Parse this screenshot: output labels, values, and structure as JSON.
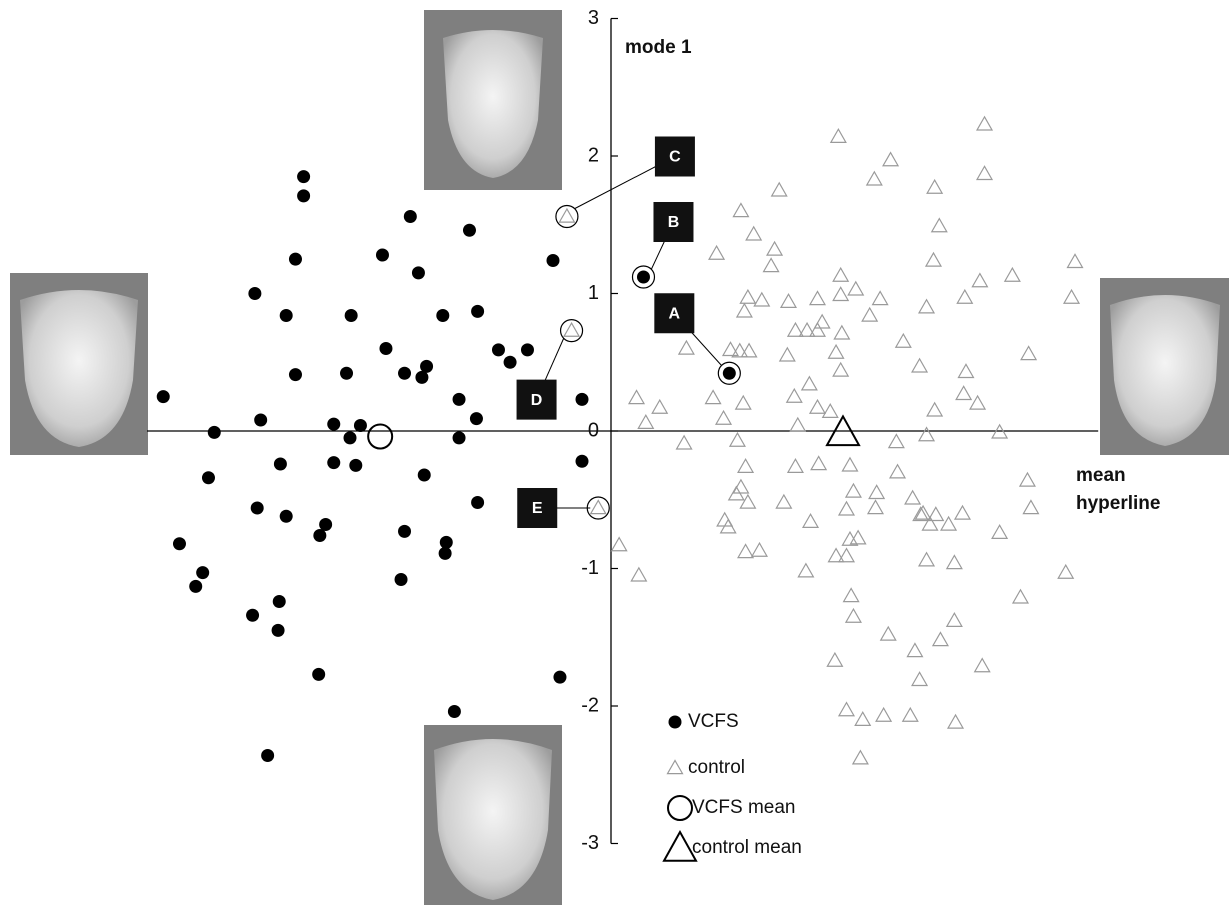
{
  "chart_data": {
    "type": "scatter",
    "x_label": "mean hyperline",
    "y_label": "mode 1",
    "xlim": [
      -4,
      4.2
    ],
    "ylim": [
      -3,
      3
    ],
    "yticks": [
      -3,
      -2,
      -1,
      0,
      1,
      2,
      3
    ],
    "series": [
      {
        "name": "VCFS",
        "color": "#000000",
        "marker": "dot",
        "x": [
          -3.86,
          -2.65,
          -2.65,
          -1.73,
          -1.22,
          -2.72,
          -1.97,
          -1.66,
          -3.07,
          -2.8,
          -2.24,
          -1.45,
          -1.15,
          -1.94,
          -2.72,
          -2.28,
          -1.78,
          -1.59,
          -1.63,
          -0.97,
          -0.87,
          -0.72,
          -1.31,
          -1.16,
          -3.02,
          -2.39,
          -2.16,
          -2.25,
          -3.42,
          -1.31,
          -2.85,
          -2.39,
          -2.2,
          -1.61,
          -3.47,
          -3.05,
          -2.8,
          -2.46,
          -2.51,
          -1.78,
          -1.15,
          -1.42,
          -1.43,
          -3.72,
          -3.52,
          -3.58,
          -1.81,
          -2.86,
          -3.09,
          -2.87,
          -2.52,
          -1.35,
          -2.96,
          -0.44,
          -0.25,
          -0.25,
          -0.5,
          0.28,
          1.02
        ],
        "values": [
          0.25,
          1.85,
          1.71,
          1.56,
          1.46,
          1.25,
          1.28,
          1.15,
          1.0,
          0.84,
          0.84,
          0.84,
          0.87,
          0.6,
          0.41,
          0.42,
          0.42,
          0.47,
          0.39,
          0.59,
          0.5,
          0.59,
          0.23,
          0.09,
          0.08,
          0.05,
          0.04,
          -0.05,
          -0.01,
          -0.05,
          -0.24,
          -0.23,
          -0.25,
          -0.32,
          -0.34,
          -0.56,
          -0.62,
          -0.68,
          -0.76,
          -0.73,
          -0.52,
          -0.81,
          -0.89,
          -0.82,
          -1.03,
          -1.13,
          -1.08,
          -1.24,
          -1.34,
          -1.45,
          -1.77,
          -2.04,
          -2.36,
          -1.79,
          0.23,
          -0.22,
          1.24,
          1.12,
          0.42
        ]
      },
      {
        "name": "control",
        "color": "#9a9a9a",
        "marker": "triangle",
        "x": [
          1.96,
          3.22,
          2.41,
          2.79,
          2.27,
          1.45,
          3.22,
          1.12,
          1.23,
          2.83,
          0.91,
          1.41,
          1.38,
          2.78,
          1.98,
          3.46,
          3.18,
          4.0,
          3.05,
          3.97,
          2.11,
          1.98,
          2.32,
          1.18,
          1.3,
          1.53,
          1.78,
          1.15,
          2.23,
          2.72,
          0.65,
          1.59,
          1.69,
          1.78,
          1.82,
          1.99,
          1.52,
          1.94,
          2.52,
          1.03,
          1.11,
          1.19,
          2.66,
          3.6,
          3.06,
          1.98,
          1.71,
          3.04,
          3.16,
          0.22,
          0.42,
          0.3,
          0.88,
          1.14,
          1.78,
          1.58,
          1.61,
          1.89,
          2.79,
          0.97,
          0.63,
          1.09,
          2.72,
          3.35,
          2.46,
          1.16,
          1.59,
          1.79,
          2.06,
          2.47,
          3.59,
          3.62,
          1.12,
          1.08,
          1.18,
          1.49,
          2.09,
          2.29,
          2.6,
          2.28,
          2.03,
          2.67,
          2.8,
          2.91,
          2.75,
          0.98,
          1.01,
          1.72,
          3.03,
          2.69,
          2.06,
          2.13,
          3.35,
          1.16,
          1.28,
          1.94,
          2.03,
          1.68,
          0.07,
          0.24,
          2.96,
          2.72,
          3.92,
          2.07,
          2.09,
          3.53,
          2.39,
          2.84,
          2.96,
          2.62,
          2.66,
          1.93,
          3.2,
          2.03,
          2.17,
          2.35,
          2.58,
          2.97,
          2.15,
          -0.38,
          -0.34,
          -0.11
        ],
        "values": [
          2.14,
          2.23,
          1.97,
          1.77,
          1.83,
          1.75,
          1.87,
          1.6,
          1.43,
          1.49,
          1.29,
          1.32,
          1.2,
          1.24,
          1.13,
          1.13,
          1.09,
          1.23,
          0.97,
          0.97,
          1.03,
          0.99,
          0.96,
          0.97,
          0.95,
          0.94,
          0.96,
          0.87,
          0.84,
          0.9,
          0.6,
          0.73,
          0.73,
          0.73,
          0.79,
          0.71,
          0.55,
          0.57,
          0.65,
          0.59,
          0.58,
          0.58,
          0.47,
          0.56,
          0.43,
          0.44,
          0.34,
          0.27,
          0.2,
          0.24,
          0.17,
          0.06,
          0.24,
          0.2,
          0.17,
          0.25,
          0.04,
          0.14,
          0.15,
          0.09,
          -0.09,
          -0.07,
          -0.03,
          -0.01,
          -0.08,
          -0.26,
          -0.26,
          -0.24,
          -0.25,
          -0.3,
          -0.36,
          -0.56,
          -0.41,
          -0.46,
          -0.52,
          -0.52,
          -0.44,
          -0.45,
          -0.49,
          -0.56,
          -0.57,
          -0.61,
          -0.61,
          -0.68,
          -0.68,
          -0.65,
          -0.7,
          -0.66,
          -0.6,
          -0.6,
          -0.79,
          -0.78,
          -0.74,
          -0.88,
          -0.87,
          -0.91,
          -0.91,
          -1.02,
          -0.83,
          -1.05,
          -0.96,
          -0.94,
          -1.03,
          -1.2,
          -1.35,
          -1.21,
          -1.48,
          -1.52,
          -1.38,
          -1.6,
          -1.81,
          -1.67,
          -1.71,
          -2.03,
          -2.1,
          -2.07,
          -2.07,
          -2.12,
          -2.38,
          1.56,
          0.73,
          -0.56
        ]
      },
      {
        "name": "VCFS mean",
        "color": "#000000",
        "marker": "circle",
        "x": [
          -1.99
        ],
        "values": [
          -0.04
        ]
      },
      {
        "name": "control mean",
        "color": "#000000",
        "marker": "big-triangle",
        "x": [
          2.0
        ],
        "values": [
          -0.01
        ]
      }
    ],
    "annotations": [
      {
        "label": "A",
        "x": 1.02,
        "y": 0.42
      },
      {
        "label": "B",
        "x": 0.28,
        "y": 1.12
      },
      {
        "label": "C",
        "x": -0.38,
        "y": 1.56
      },
      {
        "label": "D",
        "x": -0.34,
        "y": 0.73
      },
      {
        "label": "E",
        "x": -0.11,
        "y": -0.56
      }
    ]
  }
}
